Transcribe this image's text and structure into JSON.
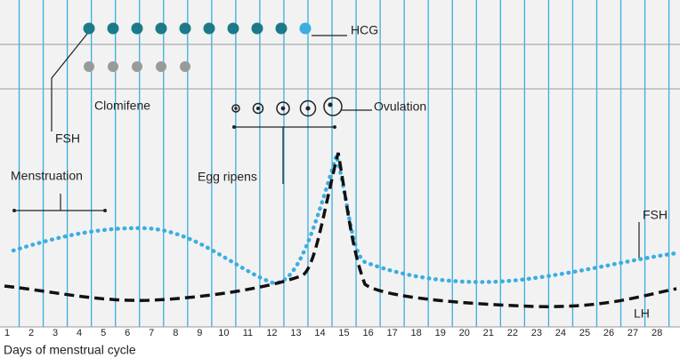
{
  "labels": {
    "hcg": "HCG",
    "fsh_left": "FSH",
    "clomifene": "Clomifene",
    "ovulation": "Ovulation",
    "egg_ripens": "Egg ripens",
    "menstruation": "Menstruation",
    "fsh_right": "FSH",
    "lh": "LH"
  },
  "axis": {
    "days": [
      1,
      2,
      3,
      4,
      5,
      6,
      7,
      8,
      9,
      10,
      11,
      12,
      13,
      14,
      15,
      16,
      17,
      18,
      19,
      20,
      21,
      22,
      23,
      24,
      25,
      26,
      27,
      28
    ],
    "title": "Days of menstrual cycle"
  }
}
